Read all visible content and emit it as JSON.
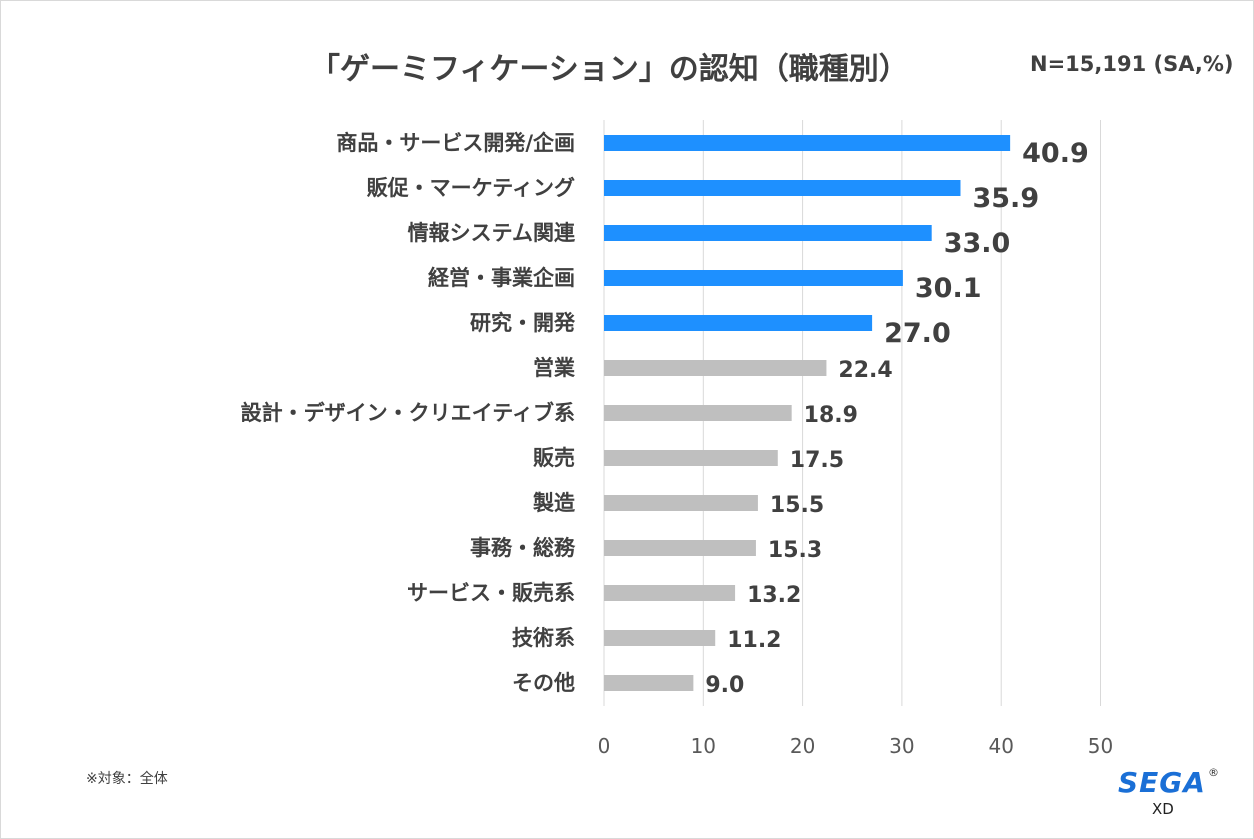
{
  "chart_data": {
    "type": "bar",
    "orientation": "horizontal",
    "title": "「ゲーミフィケーション」の認知（職種別）",
    "sample_size": "N=15,191 (SA,%)",
    "categories": [
      "商品・サービス開発/企画",
      "販促・マーケティング",
      "情報システム関連",
      "経営・事業企画",
      "研究・開発",
      "営業",
      "設計・デザイン・クリエイティブ系",
      "販売",
      "製造",
      "事務・総務",
      "サービス・販売系",
      "技術系",
      "その他"
    ],
    "values": [
      40.9,
      35.9,
      33.0,
      30.1,
      27.0,
      22.4,
      18.9,
      17.5,
      15.5,
      15.3,
      13.2,
      11.2,
      9.0
    ],
    "value_labels": [
      "40.9",
      "35.9",
      "33.0",
      "30.1",
      "27.0",
      "22.4",
      "18.9",
      "17.5",
      "15.5",
      "15.3",
      "13.2",
      "11.2",
      "9.0"
    ],
    "highlighted_count": 5,
    "xlim": [
      0,
      50
    ],
    "xticks": [
      "0",
      "10",
      "20",
      "30",
      "40",
      "50"
    ],
    "xlabel": "",
    "ylabel": "",
    "grid": true,
    "colors": {
      "highlight": "#1e90ff",
      "normal": "#bfbfbf"
    }
  },
  "footnote": "※対象：全体",
  "logo": {
    "brand": "SEGA",
    "registered": "®",
    "sub": "XD"
  }
}
